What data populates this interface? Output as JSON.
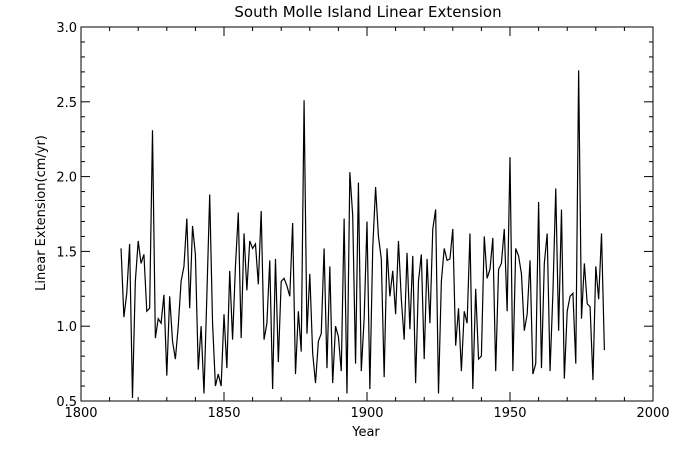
{
  "chart_data": {
    "type": "line",
    "title": "South Molle Island Linear Extension",
    "xlabel": "Year",
    "ylabel": "Linear Extension(cm/yr)",
    "xlim": [
      1800,
      2000
    ],
    "ylim": [
      0.5,
      3.0
    ],
    "x_ticks": [
      "1800",
      "1850",
      "1900",
      "1950",
      "2000"
    ],
    "y_ticks": [
      "0.5",
      "1.0",
      "1.5",
      "2.0",
      "2.5",
      "3.0"
    ],
    "grid": false,
    "series": [
      {
        "x": [
          1814,
          1815,
          1816,
          1817,
          1818,
          1819,
          1820,
          1821,
          1822,
          1823,
          1824,
          1825,
          1826,
          1827,
          1828,
          1829,
          1830,
          1831,
          1832,
          1833,
          1834,
          1835,
          1836,
          1837,
          1838,
          1839,
          1840,
          1841,
          1842,
          1843,
          1844,
          1845,
          1846,
          1847,
          1848,
          1849,
          1850,
          1851,
          1852,
          1853,
          1854,
          1855,
          1856,
          1857,
          1858,
          1859,
          1860,
          1861,
          1862,
          1863,
          1864,
          1865,
          1866,
          1867,
          1868,
          1869,
          1870,
          1871,
          1872,
          1873,
          1874,
          1875,
          1876,
          1877,
          1878,
          1879,
          1880,
          1881,
          1882,
          1883,
          1884,
          1885,
          1886,
          1887,
          1888,
          1889,
          1890,
          1891,
          1892,
          1893,
          1894,
          1895,
          1896,
          1897,
          1898,
          1899,
          1900,
          1901,
          1902,
          1903,
          1904,
          1905,
          1906,
          1907,
          1908,
          1909,
          1910,
          1911,
          1912,
          1913,
          1914,
          1915,
          1916,
          1917,
          1918,
          1919,
          1920,
          1921,
          1922,
          1923,
          1924,
          1925,
          1926,
          1927,
          1928,
          1929,
          1930,
          1931,
          1932,
          1933,
          1934,
          1935,
          1936,
          1937,
          1938,
          1939,
          1940,
          1941,
          1942,
          1943,
          1944,
          1945,
          1946,
          1947,
          1948,
          1949,
          1950,
          1951,
          1952,
          1953,
          1954,
          1955,
          1956,
          1957,
          1958,
          1959,
          1960,
          1961,
          1962,
          1963,
          1964,
          1965,
          1966,
          1967,
          1968,
          1969,
          1970,
          1971,
          1972,
          1973,
          1974,
          1975,
          1976,
          1977,
          1978,
          1979,
          1980,
          1981,
          1982,
          1983
        ],
        "values": [
          1.52,
          1.06,
          1.22,
          1.55,
          0.52,
          1.3,
          1.57,
          1.42,
          1.48,
          1.1,
          1.12,
          2.31,
          0.92,
          1.05,
          1.02,
          1.21,
          0.67,
          1.2,
          0.9,
          0.78,
          1.0,
          1.3,
          1.4,
          1.72,
          1.12,
          1.67,
          1.48,
          0.71,
          1.0,
          0.55,
          1.2,
          1.88,
          1.02,
          0.6,
          0.68,
          0.6,
          1.08,
          0.72,
          1.37,
          0.91,
          1.4,
          1.76,
          0.92,
          1.62,
          1.24,
          1.57,
          1.52,
          1.55,
          1.28,
          1.77,
          0.91,
          1.02,
          1.44,
          0.58,
          1.45,
          0.76,
          1.3,
          1.32,
          1.27,
          1.2,
          1.69,
          0.68,
          1.1,
          0.83,
          2.51,
          0.95,
          1.35,
          0.82,
          0.62,
          0.9,
          0.95,
          1.52,
          0.72,
          1.4,
          0.62,
          1.0,
          0.93,
          0.7,
          1.72,
          0.55,
          2.03,
          1.74,
          0.75,
          1.96,
          0.7,
          1.05,
          1.7,
          0.58,
          1.52,
          1.93,
          1.6,
          1.45,
          0.66,
          1.52,
          1.2,
          1.37,
          1.08,
          1.57,
          1.18,
          0.91,
          1.49,
          0.98,
          1.47,
          0.62,
          1.3,
          1.48,
          0.78,
          1.45,
          1.02,
          1.65,
          1.78,
          0.55,
          1.3,
          1.52,
          1.44,
          1.45,
          1.65,
          0.87,
          1.12,
          0.7,
          1.1,
          1.02,
          1.62,
          0.58,
          1.25,
          0.78,
          0.8,
          1.6,
          1.32,
          1.38,
          1.59,
          0.7,
          1.38,
          1.42,
          1.65,
          1.1,
          2.13,
          0.7,
          1.52,
          1.47,
          1.35,
          0.97,
          1.08,
          1.44,
          0.68,
          0.75,
          1.83,
          0.72,
          1.42,
          1.62,
          0.7,
          1.22,
          1.92,
          0.97,
          1.78,
          0.65,
          1.1,
          1.2,
          1.22,
          0.75,
          2.71,
          1.05,
          1.42,
          1.15,
          1.13,
          0.64,
          1.4,
          1.18,
          1.62,
          0.84
        ]
      }
    ]
  }
}
